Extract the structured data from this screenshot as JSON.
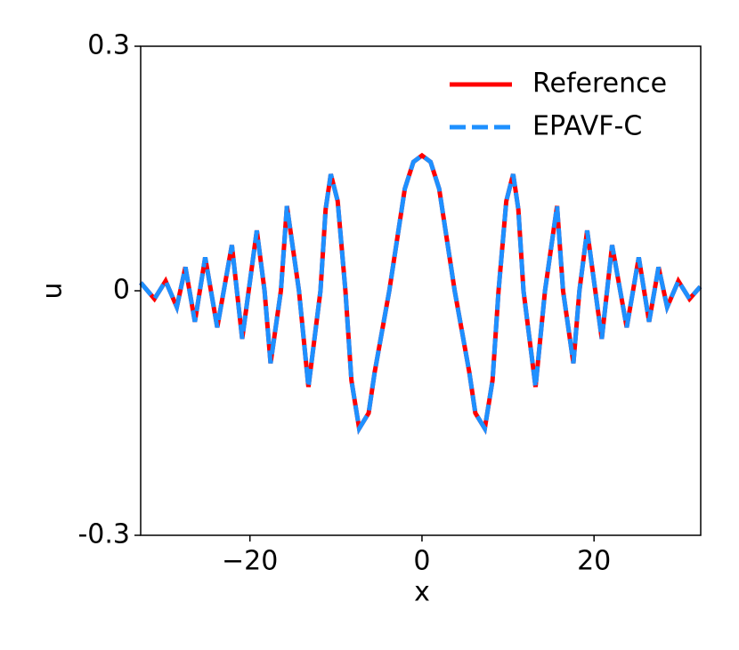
{
  "chart_data": {
    "type": "line",
    "x_label": "x",
    "y_label": "u",
    "x": [
      -32.7,
      -31.1,
      -29.8,
      -28.5,
      -27.5,
      -26.4,
      -25.2,
      -23.8,
      -22.1,
      -20.9,
      -19.2,
      -18.3,
      -17.6,
      -16.4,
      -15.7,
      -14.3,
      -13.2,
      -11.8,
      -11.2,
      -10.6,
      -9.8,
      -8.9,
      -8.2,
      -7.3,
      -6.2,
      -5.5,
      -3.8,
      -2,
      -1,
      0,
      1,
      2,
      3.8,
      5.5,
      6.2,
      7.3,
      8.2,
      8.9,
      9.8,
      10.6,
      11.2,
      11.8,
      13.2,
      14.3,
      15.7,
      16.4,
      17.6,
      18.3,
      19.2,
      20.9,
      22.1,
      23.8,
      25.2,
      26.4,
      27.5,
      28.5,
      29.8,
      31.1,
      32.35
    ],
    "series": [
      {
        "name": "Reference",
        "color": "#ff0000",
        "dashed": false,
        "values": [
          0.01,
          -0.01,
          0.012,
          -0.02,
          0.029,
          -0.038,
          0.041,
          -0.045,
          0.056,
          -0.059,
          0.074,
          0,
          -0.089,
          0,
          0.104,
          0,
          -0.118,
          0,
          0.1,
          0.143,
          0.11,
          0,
          -0.11,
          -0.169,
          -0.15,
          -0.1,
          0,
          0.125,
          0.158,
          0.166,
          0.158,
          0.125,
          0,
          -0.1,
          -0.15,
          -0.169,
          -0.11,
          0,
          0.11,
          0.143,
          0.1,
          0,
          -0.118,
          0,
          0.104,
          0,
          -0.089,
          0,
          0.074,
          -0.059,
          0.056,
          -0.045,
          0.041,
          -0.038,
          0.029,
          -0.02,
          0.012,
          -0.01,
          0.005
        ]
      },
      {
        "name": "EPAVF-C",
        "color": "#1e90ff",
        "dashed": true,
        "values": [
          0.01,
          -0.01,
          0.012,
          -0.02,
          0.029,
          -0.038,
          0.041,
          -0.045,
          0.056,
          -0.059,
          0.074,
          0,
          -0.089,
          0,
          0.104,
          0,
          -0.118,
          0,
          0.1,
          0.143,
          0.11,
          0,
          -0.11,
          -0.169,
          -0.15,
          -0.1,
          0,
          0.125,
          0.158,
          0.166,
          0.158,
          0.125,
          0,
          -0.1,
          -0.15,
          -0.169,
          -0.11,
          0,
          0.11,
          0.143,
          0.1,
          0,
          -0.118,
          0,
          0.104,
          0,
          -0.089,
          0,
          0.074,
          -0.059,
          0.056,
          -0.045,
          0.041,
          -0.038,
          0.029,
          -0.02,
          0.012,
          -0.01,
          0.005
        ]
      }
    ],
    "xlim": [
      -32.7,
      32.4
    ],
    "ylim": [
      -0.3,
      0.3
    ],
    "xticks": [
      {
        "value": -20,
        "label": "−20"
      },
      0,
      20
    ],
    "yticks": [
      -0.3,
      0,
      0.3
    ],
    "legend": "upper right",
    "grid": false
  }
}
